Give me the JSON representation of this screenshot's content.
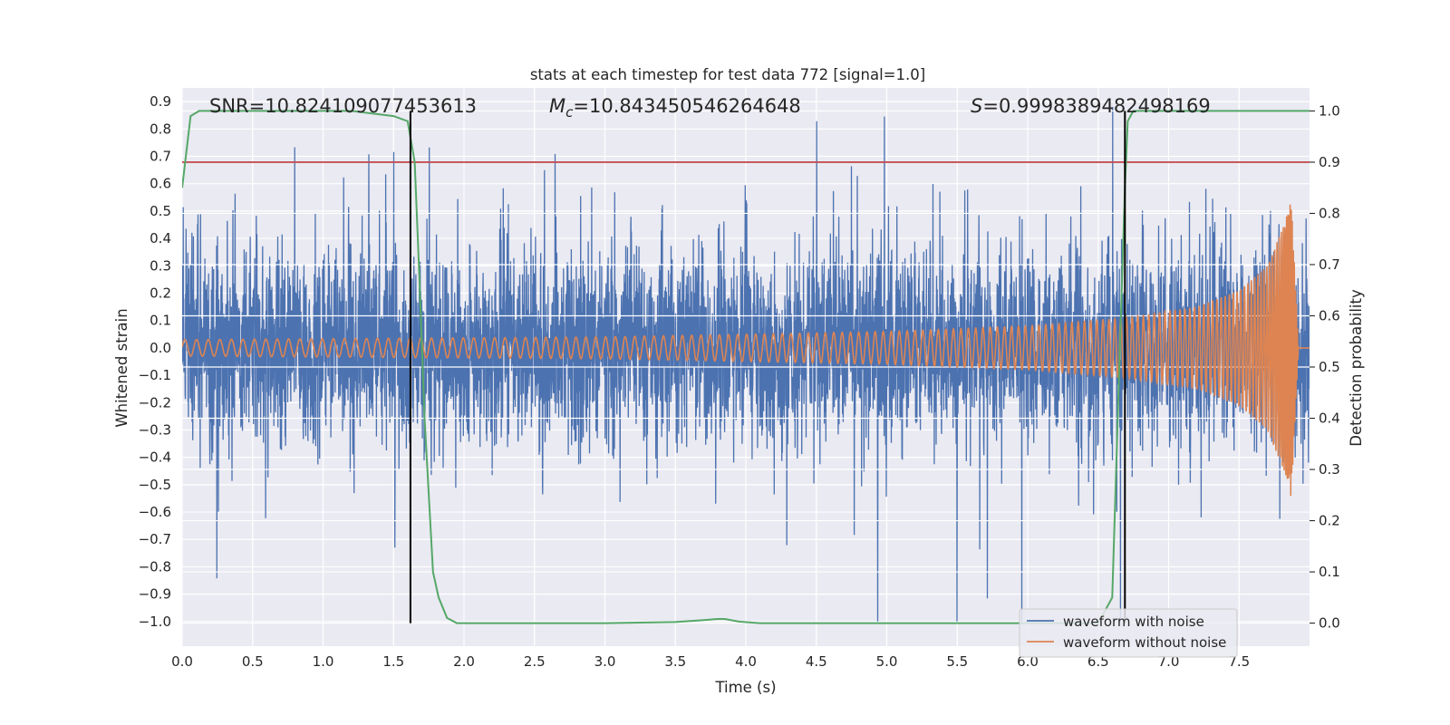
{
  "chart_data": {
    "type": "line",
    "title": "stats at each timestep for test data 772 [signal=1.0]",
    "xlabel": "Time (s)",
    "ylabel_left": "Whitened strain",
    "ylabel_right": "Detection probability",
    "xlim": [
      0.0,
      8.0
    ],
    "ylim_left": [
      -1.09,
      0.95
    ],
    "ylim_right": [
      -0.045,
      1.045
    ],
    "xticks": [
      "0.0",
      "0.5",
      "1.0",
      "1.5",
      "2.0",
      "2.5",
      "3.0",
      "3.5",
      "4.0",
      "4.5",
      "5.0",
      "5.5",
      "6.0",
      "6.5",
      "7.0",
      "7.5"
    ],
    "yticks_left": [
      "−1.0",
      "−0.9",
      "−0.8",
      "−0.7",
      "−0.6",
      "−0.5",
      "−0.4",
      "−0.3",
      "−0.2",
      "−0.1",
      "0.0",
      "0.1",
      "0.2",
      "0.3",
      "0.4",
      "0.5",
      "0.6",
      "0.7",
      "0.8",
      "0.9"
    ],
    "yticks_right": [
      "0.0",
      "0.1",
      "0.2",
      "0.3",
      "0.4",
      "0.5",
      "0.6",
      "0.7",
      "0.8",
      "0.9",
      "1.0"
    ],
    "annotations": {
      "snr": "SNR=10.824109077453613",
      "mc_symbol": "M",
      "mc_sub": "c",
      "mc_value": "=10.843450546264648",
      "s_symbol": "S",
      "s_value": "=0.9998389482498169"
    },
    "threshold": {
      "value": 0.9,
      "axis": "right",
      "color": "#c44e52"
    },
    "vlines": [
      1.62,
      6.69
    ],
    "series": [
      {
        "name": "waveform with noise",
        "color": "#4c72b0",
        "axis": "left",
        "style": "noisy-strain",
        "typical_abs": 0.5,
        "max": 0.88,
        "min": -1.0
      },
      {
        "name": "waveform without noise",
        "color": "#dd8452",
        "axis": "left",
        "style": "chirp",
        "envelope": {
          "x": [
            0.0,
            3.0,
            5.0,
            6.0,
            6.7,
            7.2,
            7.5,
            7.7,
            7.82,
            7.87,
            7.92,
            8.0
          ],
          "y": [
            0.03,
            0.04,
            0.06,
            0.08,
            0.11,
            0.15,
            0.21,
            0.3,
            0.45,
            0.55,
            0.02,
            0.0
          ]
        }
      },
      {
        "name": "detection probability",
        "color": "#55a868",
        "axis": "right",
        "x": [
          0.0,
          0.06,
          0.12,
          0.3,
          0.8,
          1.2,
          1.5,
          1.6,
          1.65,
          1.68,
          1.72,
          1.78,
          1.82,
          1.88,
          1.95,
          2.5,
          3.0,
          3.5,
          3.7,
          3.8,
          3.85,
          3.95,
          4.1,
          5.0,
          6.0,
          6.4,
          6.5,
          6.6,
          6.65,
          6.69,
          6.71,
          6.75,
          7.0,
          7.5,
          8.0
        ],
        "y": [
          0.85,
          0.99,
          1.0,
          1.0,
          1.0,
          1.0,
          0.99,
          0.98,
          0.9,
          0.7,
          0.4,
          0.1,
          0.05,
          0.01,
          0.0,
          0.0,
          0.0,
          0.002,
          0.006,
          0.008,
          0.008,
          0.003,
          0.0,
          0.0,
          0.0,
          0.0,
          0.0,
          0.05,
          0.5,
          0.85,
          0.98,
          1.0,
          1.0,
          1.0,
          1.0
        ]
      }
    ],
    "legend": {
      "location": "lower-right",
      "entries": [
        {
          "label": "waveform with noise",
          "color": "#4c72b0"
        },
        {
          "label": "waveform without noise",
          "color": "#dd8452"
        }
      ]
    },
    "grid": true,
    "background_color": "#eaeaf2"
  }
}
